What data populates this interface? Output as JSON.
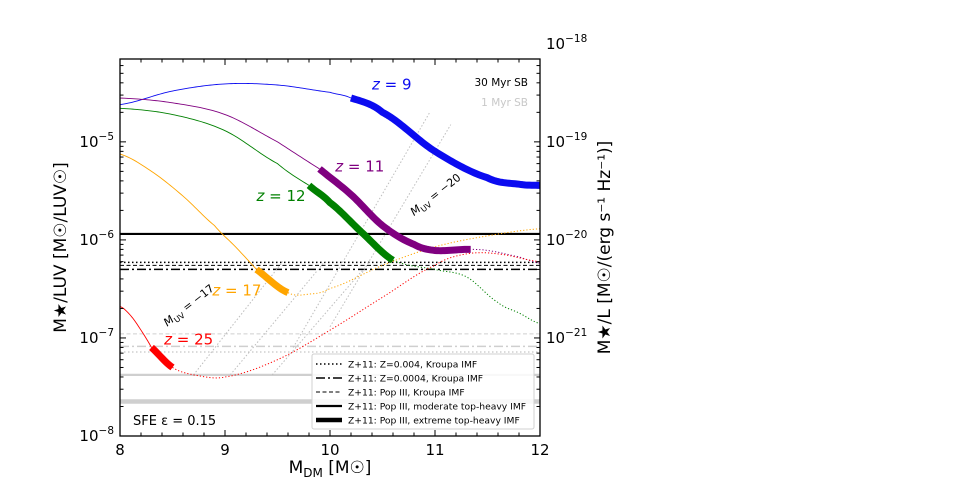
{
  "chart_data": {
    "type": "line",
    "xlabel_main": "M",
    "xlabel_sub": "DM",
    "xlabel_unit": "[M",
    "xlabel_sun": "☉",
    "xlabel_close": "]",
    "xlim": [
      8,
      12
    ],
    "ylim": [
      1e-08,
      7e-05
    ],
    "y_scale": "log",
    "x_ticks": [
      "8",
      "9",
      "10",
      "11",
      "12"
    ],
    "y_ticks_left": [
      {
        "value": 1e-08,
        "base": "10",
        "exp": "−8"
      },
      {
        "value": 1e-07,
        "base": "10",
        "exp": "−7"
      },
      {
        "value": 1e-06,
        "base": "10",
        "exp": "−6"
      },
      {
        "value": 1e-05,
        "base": "10",
        "exp": "−5"
      }
    ],
    "y_ticks_right": [
      {
        "value": 1e-21,
        "base": "10",
        "exp": "−21"
      },
      {
        "value": 1e-20,
        "base": "10",
        "exp": "−20"
      },
      {
        "value": 1e-19,
        "base": "10",
        "exp": "−19"
      },
      {
        "value": 1e-18,
        "base": "10",
        "exp": "−18"
      }
    ],
    "right_axis_offset_decades": 14,
    "ylabel_left": "M★/LUV [M☉/LUV☉]",
    "ylabel_right": "M★/L [M☉/(erg s⁻¹ Hz⁻¹)]",
    "sfe_label": "SFE ε = 0.15",
    "sb_labels": [
      {
        "text": "30 Myr SB",
        "color": "#000000"
      },
      {
        "text": "1 Myr SB",
        "color": "#c8c8c8"
      }
    ],
    "series": [
      {
        "name": "z = 9",
        "z": "9",
        "color": "#0b0bf0",
        "x": [
          8.0,
          8.5,
          9.0,
          9.5,
          10.0,
          10.2,
          10.5,
          11.0,
          11.5,
          11.8,
          12.0
        ],
        "y": [
          2.4e-05,
          3.3e-05,
          3.9e-05,
          3.8e-05,
          3.2e-05,
          2.8e-05,
          2e-05,
          8e-06,
          4.3e-06,
          3.7e-06,
          3.6e-06
        ],
        "thick_from": 10.2,
        "thick_to": 12.0,
        "label_x": 10.4,
        "label_y": 3.4e-05
      },
      {
        "name": "z = 11",
        "z": "11",
        "color": "#800080",
        "x": [
          8.0,
          8.5,
          9.0,
          9.5,
          9.9,
          10.2,
          10.5,
          10.8,
          11.0,
          11.3,
          11.5,
          11.8,
          12.0
        ],
        "y": [
          2.8e-05,
          2.5e-05,
          1.9e-05,
          1e-05,
          5.3e-06,
          2.9e-06,
          1.4e-06,
          9e-07,
          7.8e-07,
          8e-07,
          7.8e-07,
          6.7e-07,
          5.8e-07
        ],
        "thick_from": 9.9,
        "thick_to": 11.35,
        "label_x": 10.05,
        "label_y": 5e-06
      },
      {
        "name": "z = 12",
        "z": "12",
        "color": "#008000",
        "x": [
          8.0,
          8.5,
          9.0,
          9.5,
          9.8,
          10.0,
          10.3,
          10.6,
          11.0,
          11.3,
          11.6,
          11.8,
          12.0
        ],
        "y": [
          2.2e-05,
          1.9e-05,
          1.3e-05,
          6e-06,
          3.6e-06,
          2.4e-06,
          1.2e-06,
          6.2e-07,
          5e-07,
          4.2e-07,
          2.3e-07,
          1.8e-07,
          1.4e-07
        ],
        "thick_from": 9.8,
        "thick_to": 10.6,
        "label_x": 9.3,
        "label_y": 2.5e-06
      },
      {
        "name": "z = 17",
        "z": "17",
        "color": "#ffa500",
        "x": [
          8.0,
          8.3,
          8.6,
          8.9,
          9.1,
          9.3,
          9.6,
          9.8,
          10.0,
          10.5,
          11.0,
          11.5,
          12.0
        ],
        "y": [
          7.5e-06,
          5e-06,
          2.8e-06,
          1.4e-06,
          8.5e-07,
          5e-07,
          2.9e-07,
          2.8e-07,
          3.2e-07,
          5.5e-07,
          8.5e-07,
          1.1e-06,
          1.3e-06
        ],
        "thick_from": 9.3,
        "thick_to": 9.6,
        "label_x": 8.88,
        "label_y": 2.7e-07
      },
      {
        "name": "z = 25",
        "z": "25",
        "color": "#ff0000",
        "x": [
          8.0,
          8.1,
          8.2,
          8.3,
          8.5,
          8.7,
          9.0,
          9.5,
          10.0,
          10.5,
          11.0,
          11.3,
          11.6,
          12.0
        ],
        "y": [
          2.1e-07,
          1.7e-07,
          1.2e-07,
          8e-08,
          5e-08,
          4.2e-08,
          4e-08,
          6e-08,
          1.2e-07,
          2.6e-07,
          5.5e-07,
          7.2e-07,
          7.2e-07,
          6e-07
        ],
        "thick_from": 8.3,
        "thick_to": 8.5,
        "label_x": 8.42,
        "label_y": 8.6e-08
      }
    ],
    "hlines": [
      {
        "name": "moderate-top-heavy",
        "y": 1.15e-06,
        "color": "#000000",
        "dash": "",
        "width": 2.2
      },
      {
        "name": "kroupa-z0004",
        "y": 5.9e-07,
        "color": "#000000",
        "dash": "1.5,2.5",
        "width": 1.5
      },
      {
        "name": "pop3-kroupa",
        "y": 5.5e-07,
        "color": "#000000",
        "dash": "4,2.5",
        "width": 1.0
      },
      {
        "name": "kroupa-z00004",
        "y": 5e-07,
        "color": "#000000",
        "dash": "9,3,2,3",
        "width": 1.5
      },
      {
        "name": "faint-a",
        "y": 1.1e-07,
        "color": "#cfcfcf",
        "dash": "4,2.5",
        "width": 1.0
      },
      {
        "name": "faint-b",
        "y": 8.2e-08,
        "color": "#cfcfcf",
        "dash": "9,3,2,3",
        "width": 1.5
      },
      {
        "name": "faint-c",
        "y": 7.2e-08,
        "color": "#cfcfcf",
        "dash": "1.5,2.5",
        "width": 1.5
      },
      {
        "name": "faint-d",
        "y": 4.2e-08,
        "color": "#cfcfcf",
        "dash": "",
        "width": 2.2
      },
      {
        "name": "faint-e",
        "y": 2.25e-08,
        "color": "#cfcfcf",
        "dash": "",
        "width": 4.5
      }
    ],
    "muv_lines": [
      {
        "label_name": "muv-minus-17",
        "x0": 8.7,
        "y0": 4.2e-08,
        "x1": 9.55,
        "y1": 6e-07
      },
      {
        "x0": 9.05,
        "y0": 4.2e-08,
        "x1": 9.95,
        "y1": 6e-07
      },
      {
        "x0": 9.45,
        "y0": 4.2e-08,
        "x1": 10.35,
        "y1": 5.5e-07
      },
      {
        "x0": 9.65,
        "y0": 8e-08,
        "x1": 10.95,
        "y1": 2e-05
      },
      {
        "label_name": "muv-minus-20",
        "x0": 10.0,
        "y0": 1.3e-07,
        "x1": 11.15,
        "y1": 1.5e-05
      }
    ],
    "muv_labels": [
      {
        "name": "muv-label-17",
        "M": "M",
        "sub": "UV",
        "val": " = −17",
        "x": 8.45,
        "y": 1.3e-07,
        "rot": -38
      },
      {
        "name": "muv-label-20",
        "M": "M",
        "sub": "UV",
        "val": " = −20",
        "x": 10.8,
        "y": 1.75e-06,
        "rot": -38
      }
    ],
    "legend": [
      {
        "label": "Z+11: Z=0.004, Kroupa IMF",
        "dash": "1.5,2.5",
        "width": 1.5
      },
      {
        "label": "Z+11: Z=0.0004, Kroupa IMF",
        "dash": "9,3,2,3",
        "width": 1.5
      },
      {
        "label": "Z+11: Pop III, Kroupa IMF",
        "dash": "4,2.5",
        "width": 1.0
      },
      {
        "label": "Z+11: Pop III, moderate top-heavy IMF",
        "dash": "",
        "width": 2.2
      },
      {
        "label": "Z+11: Pop III, extreme top-heavy IMF",
        "dash": "",
        "width": 4.5
      }
    ]
  }
}
